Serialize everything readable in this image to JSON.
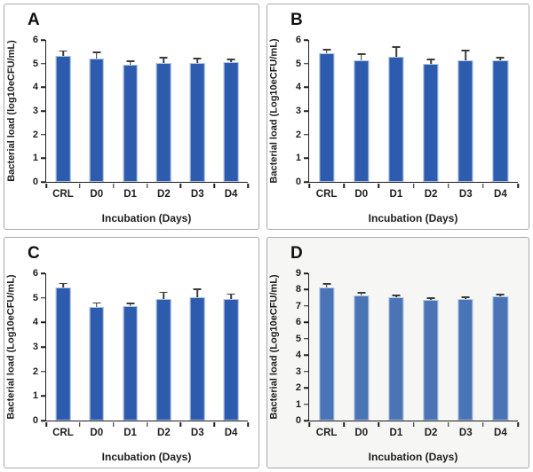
{
  "figure": {
    "description": "Four-panel bar chart figure of bacterial load over incubation days"
  },
  "chart_data": [
    {
      "type": "bar",
      "panel_label": "A",
      "categories": [
        "CRL",
        "D0",
        "D1",
        "D2",
        "D3",
        "D4"
      ],
      "values": [
        5.32,
        5.23,
        4.95,
        5.02,
        5.02,
        5.07
      ],
      "errors": [
        0.18,
        0.22,
        0.12,
        0.2,
        0.15,
        0.08
      ],
      "xlabel": "Incubation (Days)",
      "ylabel": "Bacterial load (log10eCFU/mL)",
      "ylim": [
        0,
        6
      ],
      "yticks": [
        0,
        1,
        2,
        3,
        4,
        5,
        6
      ],
      "bar_color": "#2d5bae",
      "panel_bg": "#ffffff",
      "grid": "off",
      "legend": "none"
    },
    {
      "type": "bar",
      "panel_label": "B",
      "categories": [
        "CRL",
        "D0",
        "D1",
        "D2",
        "D3",
        "D4"
      ],
      "values": [
        5.42,
        5.14,
        5.3,
        4.97,
        5.13,
        5.13
      ],
      "errors": [
        0.13,
        0.22,
        0.36,
        0.18,
        0.38,
        0.08
      ],
      "xlabel": "Incubation (Days)",
      "ylabel": "Bacterial load (Log10eCFU/mL)",
      "ylim": [
        0,
        6
      ],
      "yticks": [
        0,
        1,
        2,
        3,
        4,
        5,
        6
      ],
      "bar_color": "#2d5bae",
      "panel_bg": "#ffffff",
      "grid": "off",
      "legend": "none"
    },
    {
      "type": "bar",
      "panel_label": "C",
      "categories": [
        "CRL",
        "D0",
        "D1",
        "D2",
        "D3",
        "D4"
      ],
      "values": [
        5.42,
        4.63,
        4.67,
        4.97,
        5.02,
        4.97
      ],
      "errors": [
        0.13,
        0.13,
        0.07,
        0.22,
        0.3,
        0.15
      ],
      "xlabel": "Incubation (Days)",
      "ylabel": "Bacterial load (Log10eCFU/mL)",
      "ylim": [
        0,
        6
      ],
      "yticks": [
        0,
        1,
        2,
        3,
        4,
        5,
        6
      ],
      "bar_color": "#2d5bae",
      "panel_bg": "#ffffff",
      "grid": "off",
      "legend": "none"
    },
    {
      "type": "bar",
      "panel_label": "D",
      "categories": [
        "CRL",
        "D0",
        "D1",
        "D2",
        "D3",
        "D4"
      ],
      "values": [
        8.13,
        7.65,
        7.53,
        7.35,
        7.45,
        7.58
      ],
      "errors": [
        0.15,
        0.1,
        0.06,
        0.1,
        0.05,
        0.05
      ],
      "xlabel": "Incubation (Days)",
      "ylabel": "Bacterial load (Log10eCFU/mL)",
      "ylim": [
        0,
        9
      ],
      "yticks": [
        0,
        1,
        2,
        3,
        4,
        5,
        6,
        7,
        8,
        9
      ],
      "bar_color": "#4a74b5",
      "panel_bg": "#f6f6f4",
      "grid": "off",
      "legend": "none"
    }
  ]
}
